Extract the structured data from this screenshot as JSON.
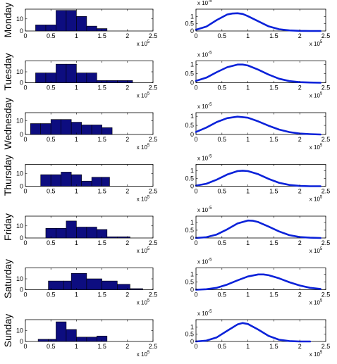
{
  "chart_data": [
    {
      "type": "bar",
      "panel": "histogram",
      "ylabel": "Monday",
      "bins": [
        [
          0.2,
          0.4
        ],
        [
          0.4,
          0.6
        ],
        [
          0.6,
          0.8
        ],
        [
          0.8,
          1.0
        ],
        [
          1.0,
          1.2
        ],
        [
          1.2,
          1.4
        ],
        [
          1.4,
          1.6
        ]
      ],
      "values": [
        5,
        5,
        17,
        17,
        12,
        4,
        2
      ],
      "xlim": [
        0,
        2.5
      ],
      "ylim": [
        0,
        18
      ],
      "xticks": [
        "0",
        "0.5",
        "1",
        "1.5",
        "2",
        "2.5"
      ],
      "yticks": [
        "0",
        "10"
      ],
      "x_multiplier": "x 10",
      "x_exponent": "5"
    },
    {
      "type": "line",
      "panel": "curve",
      "x": [
        0,
        0.2,
        0.4,
        0.6,
        0.7,
        0.8,
        0.9,
        1.0,
        1.2,
        1.4,
        1.6,
        1.8,
        2.0,
        2.2,
        2.4
      ],
      "y": [
        0.08,
        0.3,
        0.75,
        1.13,
        1.2,
        1.22,
        1.17,
        1.02,
        0.67,
        0.32,
        0.12,
        0.04,
        0.01,
        0.0,
        0.0
      ],
      "xlim": [
        0,
        2.5
      ],
      "ylim": [
        0,
        1.5
      ],
      "xticks": [
        "0",
        "0.5",
        "1",
        "1.5",
        "2",
        "2.5"
      ],
      "yticks": [
        "0",
        "0.5",
        "1"
      ],
      "x_multiplier": "x 10",
      "x_exponent": "5",
      "y_multiplier": "x 10",
      "y_exponent": "-5"
    },
    {
      "type": "bar",
      "panel": "histogram",
      "ylabel": "Tuesday",
      "bins": [
        [
          0.2,
          0.4
        ],
        [
          0.4,
          0.6
        ],
        [
          0.6,
          0.8
        ],
        [
          0.8,
          1.0
        ],
        [
          1.0,
          1.2
        ],
        [
          1.2,
          1.4
        ],
        [
          1.4,
          1.6
        ],
        [
          1.6,
          1.8
        ],
        [
          1.8,
          2.0
        ],
        [
          2.0,
          2.1
        ]
      ],
      "values": [
        9,
        9,
        17,
        17,
        9,
        9,
        2,
        2,
        2,
        2
      ],
      "xlim": [
        0,
        2.5
      ],
      "ylim": [
        0,
        20
      ],
      "xticks": [
        "0",
        "0.5",
        "1",
        "1.5",
        "2",
        "2.5"
      ],
      "yticks": [
        "0",
        "10"
      ],
      "x_multiplier": "x 10",
      "x_exponent": "5"
    },
    {
      "type": "line",
      "panel": "curve",
      "x": [
        0,
        0.2,
        0.4,
        0.6,
        0.8,
        0.9,
        1.0,
        1.2,
        1.4,
        1.6,
        1.8,
        2.0,
        2.2,
        2.4
      ],
      "y": [
        0.1,
        0.28,
        0.58,
        0.85,
        1.0,
        1.0,
        0.95,
        0.72,
        0.45,
        0.22,
        0.09,
        0.03,
        0.01,
        0.0
      ],
      "xlim": [
        0,
        2.5
      ],
      "ylim": [
        0,
        1.2
      ],
      "xticks": [
        "0",
        "0.5",
        "1",
        "1.5",
        "2",
        "2.5"
      ],
      "yticks": [
        "0",
        "0.5",
        "1"
      ],
      "x_multiplier": "x 10",
      "x_exponent": "5",
      "y_multiplier": "x 10",
      "y_exponent": "-5"
    },
    {
      "type": "bar",
      "panel": "histogram",
      "ylabel": "Wednesday",
      "bins": [
        [
          0.1,
          0.3
        ],
        [
          0.3,
          0.5
        ],
        [
          0.5,
          0.7
        ],
        [
          0.7,
          0.9
        ],
        [
          0.9,
          1.1
        ],
        [
          1.1,
          1.3
        ],
        [
          1.3,
          1.5
        ],
        [
          1.5,
          1.7
        ]
      ],
      "values": [
        8,
        8,
        11,
        11,
        9,
        7,
        7,
        5
      ],
      "xlim": [
        0,
        2.5
      ],
      "ylim": [
        0,
        16
      ],
      "xticks": [
        "0",
        "0.5",
        "1",
        "1.5",
        "2",
        "2.5"
      ],
      "yticks": [
        "0",
        "10"
      ],
      "x_multiplier": "x 10",
      "x_exponent": "5"
    },
    {
      "type": "line",
      "panel": "curve",
      "x": [
        0,
        0.2,
        0.4,
        0.6,
        0.8,
        1.0,
        1.2,
        1.4,
        1.6,
        1.8,
        2.0,
        2.2,
        2.4
      ],
      "y": [
        0.14,
        0.38,
        0.68,
        0.9,
        0.98,
        0.92,
        0.72,
        0.48,
        0.27,
        0.13,
        0.05,
        0.02,
        0.0
      ],
      "xlim": [
        0,
        2.5
      ],
      "ylim": [
        0,
        1.2
      ],
      "xticks": [
        "0",
        "0.5",
        "1",
        "1.5",
        "2",
        "2.5"
      ],
      "yticks": [
        "0",
        "0.5",
        "1"
      ],
      "x_multiplier": "x 10",
      "x_exponent": "5",
      "y_multiplier": "x 10",
      "y_exponent": "-5"
    },
    {
      "type": "bar",
      "panel": "histogram",
      "ylabel": "Thursday",
      "bins": [
        [
          0.3,
          0.5
        ],
        [
          0.5,
          0.7
        ],
        [
          0.7,
          0.9
        ],
        [
          0.9,
          1.1
        ],
        [
          1.1,
          1.3
        ],
        [
          1.3,
          1.5
        ],
        [
          1.5,
          1.65
        ]
      ],
      "values": [
        9,
        9,
        11,
        9,
        4,
        7,
        7
      ],
      "xlim": [
        0,
        2.5
      ],
      "ylim": [
        0,
        17
      ],
      "xticks": [
        "0",
        "0.5",
        "1",
        "1.5",
        "2",
        "2.5"
      ],
      "yticks": [
        "0",
        "10"
      ],
      "x_multiplier": "x 10",
      "x_exponent": "5"
    },
    {
      "type": "line",
      "panel": "curve",
      "x": [
        0,
        0.2,
        0.4,
        0.6,
        0.8,
        0.9,
        1.0,
        1.2,
        1.4,
        1.6,
        1.8,
        2.0,
        2.2,
        2.4
      ],
      "y": [
        0.04,
        0.16,
        0.42,
        0.75,
        0.97,
        1.0,
        0.97,
        0.77,
        0.47,
        0.22,
        0.08,
        0.02,
        0.0,
        0.0
      ],
      "xlim": [
        0,
        2.5
      ],
      "ylim": [
        0,
        1.4
      ],
      "xticks": [
        "0",
        "0.5",
        "1",
        "1.5",
        "2",
        "2.5"
      ],
      "yticks": [
        "0",
        "0.5",
        "1"
      ],
      "x_multiplier": "x 10",
      "x_exponent": "5",
      "y_multiplier": "x 10",
      "y_exponent": "-5"
    },
    {
      "type": "bar",
      "panel": "histogram",
      "ylabel": "Friday",
      "bins": [
        [
          0.4,
          0.6
        ],
        [
          0.6,
          0.8
        ],
        [
          0.8,
          1.0
        ],
        [
          1.0,
          1.2
        ],
        [
          1.2,
          1.4
        ],
        [
          1.4,
          1.6
        ],
        [
          1.6,
          1.8
        ],
        [
          1.8,
          2.05
        ]
      ],
      "values": [
        8,
        8,
        14,
        9,
        9,
        7,
        1,
        1
      ],
      "xlim": [
        0,
        2.5
      ],
      "ylim": [
        0,
        18
      ],
      "xticks": [
        "0",
        "0.5",
        "1",
        "1.5",
        "2",
        "2.5"
      ],
      "yticks": [
        "0",
        "10"
      ],
      "x_multiplier": "x 10",
      "x_exponent": "5"
    },
    {
      "type": "line",
      "panel": "curve",
      "x": [
        0,
        0.2,
        0.4,
        0.6,
        0.8,
        1.0,
        1.1,
        1.2,
        1.4,
        1.6,
        1.8,
        2.0,
        2.2,
        2.4
      ],
      "y": [
        0.0,
        0.05,
        0.22,
        0.55,
        0.93,
        1.12,
        1.1,
        1.02,
        0.73,
        0.42,
        0.18,
        0.06,
        0.02,
        0.0
      ],
      "xlim": [
        0,
        2.5
      ],
      "ylim": [
        0,
        1.4
      ],
      "xticks": [
        "0",
        "0.5",
        "1",
        "1.5",
        "2",
        "2.5"
      ],
      "yticks": [
        "0",
        "0.5",
        "1"
      ],
      "x_multiplier": "x 10",
      "x_exponent": "5",
      "y_multiplier": "x 10",
      "y_exponent": "-5"
    },
    {
      "type": "bar",
      "panel": "histogram",
      "ylabel": "Saturday",
      "bins": [
        [
          0.45,
          0.75
        ],
        [
          0.75,
          0.9
        ],
        [
          0.9,
          1.2
        ],
        [
          1.2,
          1.5
        ],
        [
          1.5,
          1.8
        ],
        [
          1.8,
          2.05
        ],
        [
          2.05,
          2.3
        ]
      ],
      "values": [
        8,
        8,
        15,
        10,
        8,
        5,
        1
      ],
      "xlim": [
        0,
        2.5
      ],
      "ylim": [
        0,
        20
      ],
      "xticks": [
        "0",
        "0.5",
        "1",
        "1.5",
        "2",
        "2.5"
      ],
      "yticks": [
        "0",
        "10"
      ],
      "x_multiplier": "x 10",
      "x_exponent": "5"
    },
    {
      "type": "line",
      "panel": "curve",
      "x": [
        0,
        0.2,
        0.4,
        0.6,
        0.8,
        1.0,
        1.2,
        1.3,
        1.4,
        1.6,
        1.8,
        2.0,
        2.2,
        2.4
      ],
      "y": [
        0.0,
        0.03,
        0.12,
        0.33,
        0.6,
        0.85,
        0.98,
        0.98,
        0.93,
        0.73,
        0.48,
        0.27,
        0.12,
        0.05
      ],
      "xlim": [
        0,
        2.5
      ],
      "ylim": [
        0,
        1.4
      ],
      "xticks": [
        "0",
        "0.5",
        "1",
        "1.5",
        "2",
        "2.5"
      ],
      "yticks": [
        "0",
        "0.5",
        "1"
      ],
      "x_multiplier": "x 10",
      "x_exponent": "5",
      "y_multiplier": "x 10",
      "y_exponent": "-5"
    },
    {
      "type": "bar",
      "panel": "histogram",
      "ylabel": "Sunday",
      "bins": [
        [
          0.25,
          0.45
        ],
        [
          0.45,
          0.6
        ],
        [
          0.6,
          0.8
        ],
        [
          0.8,
          1.0
        ],
        [
          1.0,
          1.2
        ],
        [
          1.2,
          1.4
        ],
        [
          1.4,
          1.6
        ]
      ],
      "values": [
        2,
        2,
        18,
        11,
        4,
        4,
        5
      ],
      "xlim": [
        0,
        2.5
      ],
      "ylim": [
        0,
        20
      ],
      "xticks": [
        "0",
        "0.5",
        "1",
        "1.5",
        "2",
        "2.5"
      ],
      "yticks": [
        "0",
        "10"
      ],
      "x_multiplier": "x 10",
      "x_exponent": "5"
    },
    {
      "type": "line",
      "panel": "curve",
      "x": [
        0,
        0.2,
        0.4,
        0.6,
        0.8,
        0.9,
        1.0,
        1.2,
        1.4,
        1.6,
        1.8,
        2.0,
        2.2
      ],
      "y": [
        0.0,
        0.06,
        0.28,
        0.73,
        1.17,
        1.27,
        1.2,
        0.82,
        0.38,
        0.12,
        0.03,
        0.0,
        0.0
      ],
      "xlim": [
        0,
        2.5
      ],
      "ylim": [
        0,
        1.5
      ],
      "xticks": [
        "0",
        "0.5",
        "1",
        "1.5",
        "2",
        "2.5"
      ],
      "yticks": [
        "0",
        "0.5",
        "1"
      ],
      "x_multiplier": "x 10",
      "x_exponent": "5",
      "y_multiplier": "x 10",
      "y_exponent": "-5"
    }
  ],
  "colors": {
    "bar_fill": "#0d0d80",
    "bar_edge": "#000000",
    "line": "#0b22d9",
    "axes": "#000000"
  }
}
